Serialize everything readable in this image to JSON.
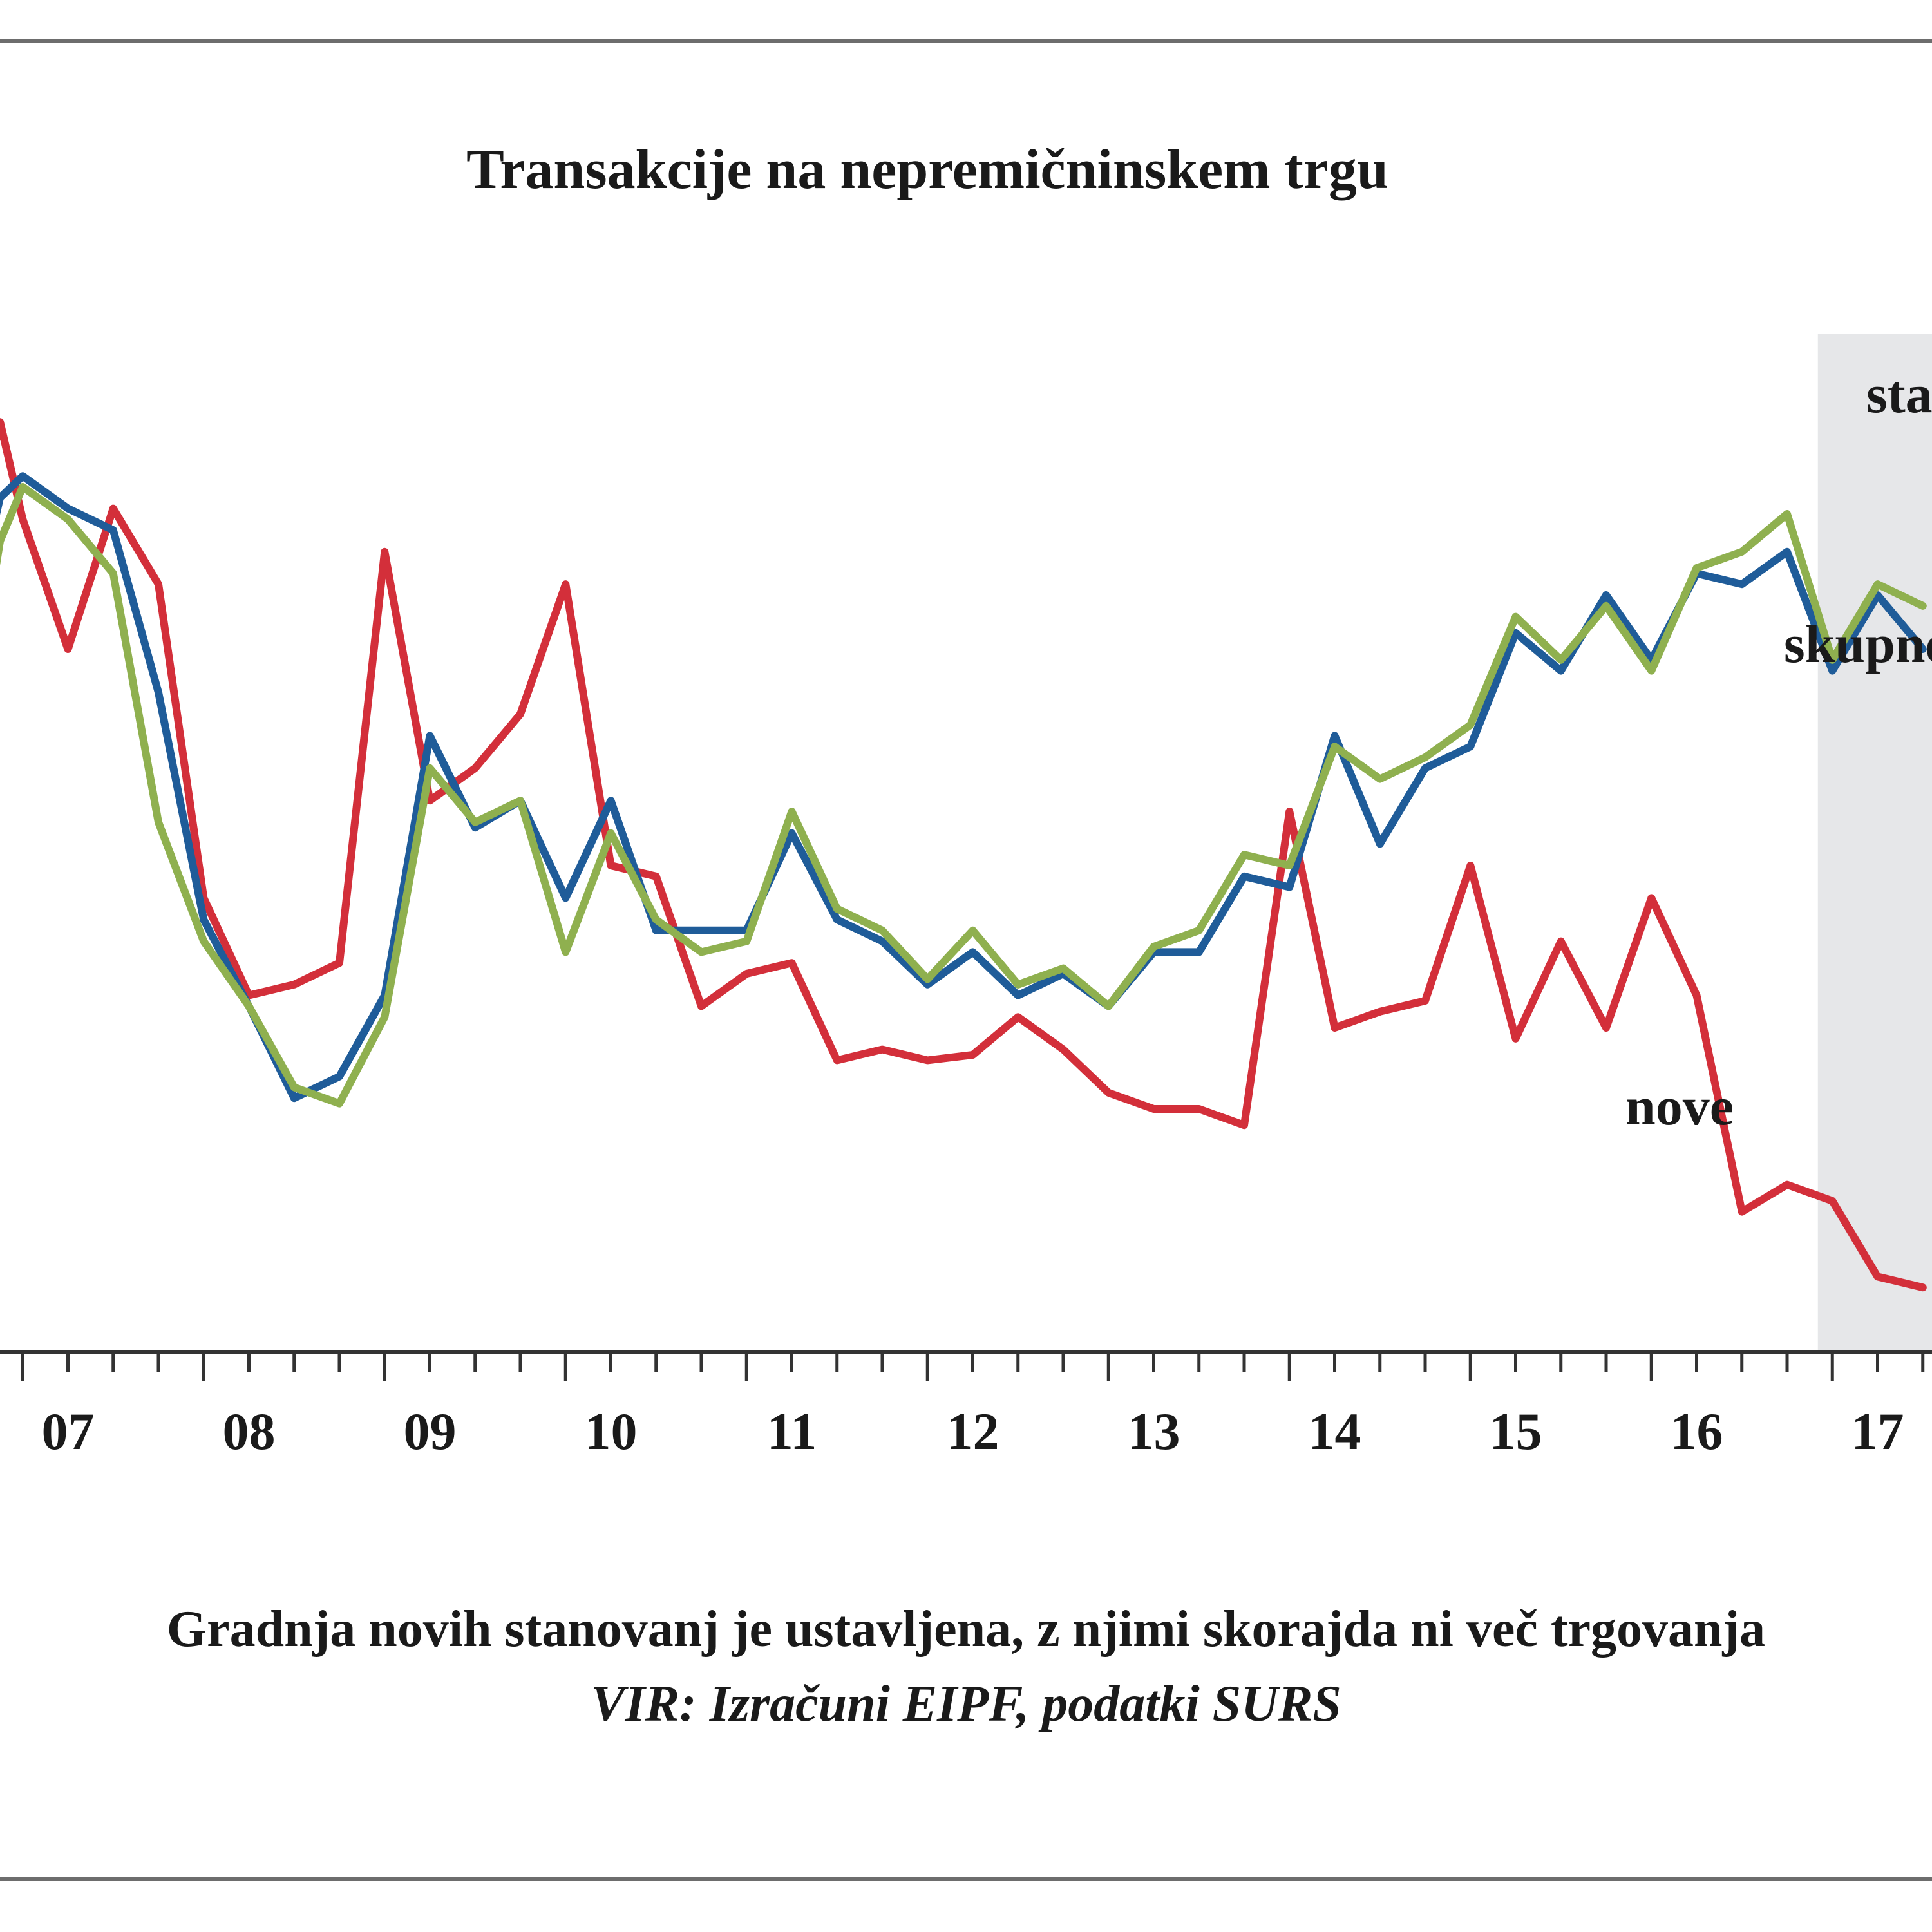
{
  "chart_data": {
    "type": "line",
    "title": "Transakcije na nepremičninskem trgu",
    "caption": "Gradnja novih stanovanj je ustavljena, z njimi skorajda ni več trgovanja",
    "source": "VIR: Izračuni EIPF, podatki SURS",
    "x_tick_labels": [
      "07",
      "08",
      "09",
      "10",
      "11",
      "12",
      "13",
      "14",
      "15",
      "16",
      "17"
    ],
    "x_tick_positions": [
      2007,
      2008,
      2009,
      2010,
      2011,
      2012,
      2013,
      2014,
      2015,
      2016,
      2017
    ],
    "xlim": [
      2006.75,
      2017.5
    ],
    "ylim": [
      0,
      100
    ],
    "grid": false,
    "legend": "inline labels",
    "shaded_region": {
      "from": 2016.92,
      "to": 2017.5,
      "color": "#e6e7e9"
    },
    "x": [
      2006.75,
      2006.875,
      2007,
      2007.25,
      2007.5,
      2007.75,
      2008,
      2008.25,
      2008.5,
      2008.75,
      2009,
      2009.25,
      2009.5,
      2009.75,
      2010,
      2010.25,
      2010.5,
      2010.75,
      2011,
      2011.25,
      2011.5,
      2011.75,
      2012,
      2012.25,
      2012.5,
      2012.75,
      2013,
      2013.25,
      2013.5,
      2013.75,
      2014,
      2014.25,
      2014.5,
      2014.75,
      2015,
      2015.25,
      2015.5,
      2015.75,
      2016,
      2016.25,
      2016.5,
      2016.75,
      2017,
      2017.25,
      2017.5
    ],
    "series": [
      {
        "name": "nove",
        "color": "#d32f3a",
        "values": [
          76,
          86,
          77,
          65,
          78,
          71,
          42,
          33,
          34,
          36,
          74,
          51,
          54,
          59,
          71,
          45,
          44,
          32,
          35,
          36,
          27,
          28,
          27,
          27.5,
          31,
          28,
          24,
          22.5,
          22.5,
          21,
          50,
          30,
          31.5,
          32.5,
          45,
          29,
          38,
          30,
          42,
          33,
          13,
          15.5,
          14,
          7,
          6
        ]
      },
      {
        "name": "skupne",
        "color": "#1f5c99",
        "values": [
          70,
          79,
          81,
          78,
          76,
          61,
          40,
          32,
          23.5,
          25.5,
          33,
          57,
          48.5,
          51,
          42,
          51,
          39,
          39,
          39,
          48,
          40,
          38,
          34,
          37,
          33,
          35,
          32,
          37,
          37,
          44,
          43,
          57,
          47,
          54,
          56,
          66.5,
          63,
          70,
          64,
          72,
          71,
          74,
          63,
          70,
          65
        ]
      },
      {
        "name": "stare",
        "color": "#8fb04f",
        "values": [
          62,
          75,
          80,
          77,
          72,
          49,
          38,
          32,
          24.5,
          23,
          31,
          54,
          49,
          51,
          37,
          48,
          40,
          37,
          38,
          50,
          41,
          39,
          34.5,
          39,
          34,
          35.5,
          32,
          37.5,
          39,
          46,
          45,
          56,
          53,
          55,
          58,
          68,
          64,
          69,
          63,
          72.5,
          74,
          77.5,
          64,
          71,
          69
        ]
      }
    ],
    "series_labels": {
      "nove": "nove",
      "skupne": "skupne",
      "stare": "stare"
    }
  }
}
